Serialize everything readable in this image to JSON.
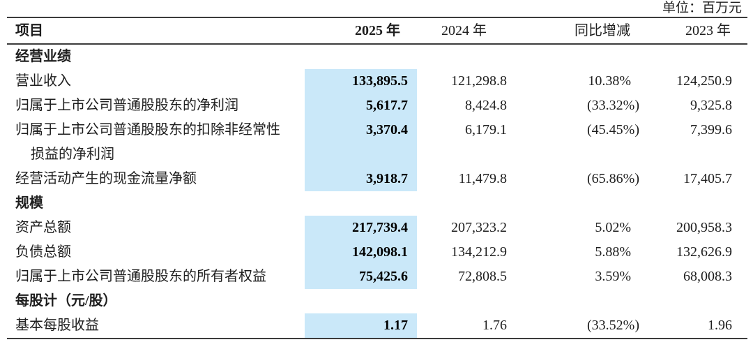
{
  "unit_label": "单位：百万元",
  "highlight_color": "#cae8f9",
  "table": {
    "columns": [
      "项目",
      "2025 年",
      "2024 年",
      "同比增减",
      "2023 年"
    ],
    "rows": [
      {
        "type": "section",
        "label": "经营业绩"
      },
      {
        "type": "data",
        "label": "营业收入",
        "y2025": "133,895.5",
        "y2024": "121,298.8",
        "yoy": "10.38%",
        "y2023": "124,250.9"
      },
      {
        "type": "data",
        "label": "归属于上市公司普通股股东的净利润",
        "y2025": "5,617.7",
        "y2024": "8,424.8",
        "yoy": "(33.32%)",
        "y2023": "9,325.8"
      },
      {
        "type": "data",
        "label": "归属于上市公司普通股股东的扣除非经常性损益的净利润",
        "label_lines": [
          "归属于上市公司普通股股东的扣除非经常性",
          "损益的净利润"
        ],
        "y2025": "3,370.4",
        "y2024": "6,179.1",
        "yoy": "(45.45%)",
        "y2023": "7,399.6"
      },
      {
        "type": "data",
        "label": "经营活动产生的现金流量净额",
        "y2025": "3,918.7",
        "y2024": "11,479.8",
        "yoy": "(65.86%)",
        "y2023": "17,405.7"
      },
      {
        "type": "section",
        "label": "规模"
      },
      {
        "type": "data",
        "label": "资产总额",
        "y2025": "217,739.4",
        "y2024": "207,323.2",
        "yoy": "5.02%",
        "y2023": "200,958.3"
      },
      {
        "type": "data",
        "label": "负债总额",
        "y2025": "142,098.1",
        "y2024": "134,212.9",
        "yoy": "5.88%",
        "y2023": "132,626.9"
      },
      {
        "type": "data",
        "label": "归属于上市公司普通股股东的所有者权益",
        "y2025": "75,425.6",
        "y2024": "72,808.5",
        "yoy": "3.59%",
        "y2023": "68,008.3"
      },
      {
        "type": "section",
        "label": "每股计（元/股）"
      },
      {
        "type": "data",
        "label": "基本每股收益",
        "y2025": "1.17",
        "y2024": "1.76",
        "yoy": "(33.52%)",
        "y2023": "1.96"
      }
    ]
  }
}
